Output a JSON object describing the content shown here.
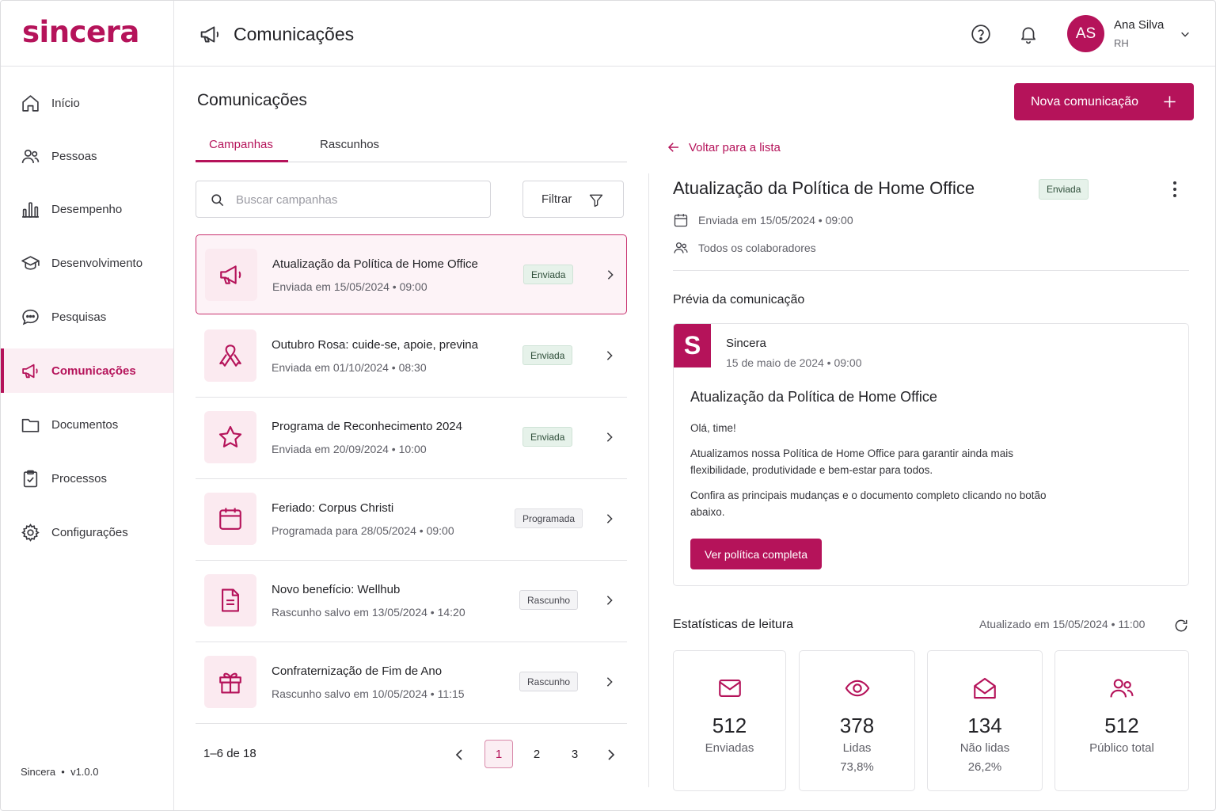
{
  "brand": {
    "name": "sincera",
    "accent": "#b5135a"
  },
  "sidebar": {
    "items": [
      {
        "label": "Início",
        "icon": "home-icon"
      },
      {
        "label": "Pessoas",
        "icon": "people-icon"
      },
      {
        "label": "Desempenho",
        "icon": "bar-chart-icon"
      },
      {
        "label": "Desenvolvimento",
        "icon": "graduation-cap-icon"
      },
      {
        "label": "Pesquisas",
        "icon": "chat-bubble-icon"
      },
      {
        "label": "Comunicações",
        "icon": "megaphone-icon",
        "active": true
      },
      {
        "label": "Documentos",
        "icon": "folder-icon"
      },
      {
        "label": "Processos",
        "icon": "clipboard-check-icon"
      },
      {
        "label": "Configurações",
        "icon": "gear-icon"
      }
    ],
    "footer_name": "Sincera",
    "footer_version": "v1.0.0"
  },
  "header": {
    "title": "Comunicações",
    "user": {
      "initials": "AS",
      "name": "Ana Silva",
      "role": "RH"
    }
  },
  "main": {
    "title": "Comunicações",
    "tabs": [
      {
        "label": "Campanhas",
        "active": true
      },
      {
        "label": "Rascunhos"
      }
    ],
    "search": {
      "placeholder": "Buscar campanhas",
      "value": ""
    },
    "filter_label": "Filtrar",
    "new_button": "Nova comunicação",
    "campaigns": [
      {
        "title": "Atualização da Política de Home Office",
        "subtitle": "Enviada em 15/05/2024 • 09:00",
        "status": "Enviada",
        "icon": "megaphone-icon",
        "selected": true
      },
      {
        "title": "Outubro Rosa: cuide-se, apoie, previna",
        "subtitle": "Enviada em 01/10/2024 • 08:30",
        "status": "Enviada",
        "icon": "ribbon-icon"
      },
      {
        "title": "Programa de Reconhecimento 2024",
        "subtitle": "Enviada em 20/09/2024 • 10:00",
        "status": "Enviada",
        "icon": "star-icon"
      },
      {
        "title": "Feriado: Corpus Christi",
        "subtitle": "Programada para 28/05/2024 • 09:00",
        "status": "Programada",
        "icon": "calendar-icon"
      },
      {
        "title": "Novo benefício: Wellhub",
        "subtitle": "Rascunho salvo em 13/05/2024 • 14:20",
        "status": "Rascunho",
        "icon": "document-icon"
      },
      {
        "title": "Confraternização de Fim de Ano",
        "subtitle": "Rascunho salvo em 10/05/2024 • 11:15",
        "status": "Rascunho",
        "icon": "gift-icon"
      }
    ],
    "pagination": {
      "info": "1–6 de 18",
      "pages": [
        "1",
        "2",
        "3"
      ],
      "current": "1"
    }
  },
  "detail": {
    "back_label": "Voltar para a lista",
    "title": "Atualização da Política de Home Office",
    "status": "Enviada",
    "sent_at": "Enviada em 15/05/2024 • 09:00",
    "audience": "Todos os colaboradores",
    "preview_heading": "Prévia da comunicação",
    "preview": {
      "logo_letter": "S",
      "sender": "Sincera",
      "date": "15 de maio de 2024 • 09:00",
      "title": "Atualização da Política de Home Office",
      "greeting": "Olá, time!",
      "paragraph1": "Atualizamos nossa Política de Home Office para garantir ainda mais flexibilidade, produtividade e bem-estar para todos.",
      "paragraph2": "Confira as principais mudanças e o documento completo clicando no botão abaixo.",
      "button": "Ver política completa"
    },
    "stats_heading": "Estatísticas de leitura",
    "stats_updated": "Atualizado em 15/05/2024 • 11:00",
    "stats": [
      {
        "value": "512",
        "label": "Enviadas",
        "pct": "",
        "icon": "envelope-icon"
      },
      {
        "value": "378",
        "label": "Lidas",
        "pct": "73,8%",
        "icon": "eye-icon"
      },
      {
        "value": "134",
        "label": "Não lidas",
        "pct": "26,2%",
        "icon": "envelope-open-icon"
      },
      {
        "value": "512",
        "label": "Público total",
        "pct": "",
        "icon": "people-icon"
      }
    ]
  }
}
